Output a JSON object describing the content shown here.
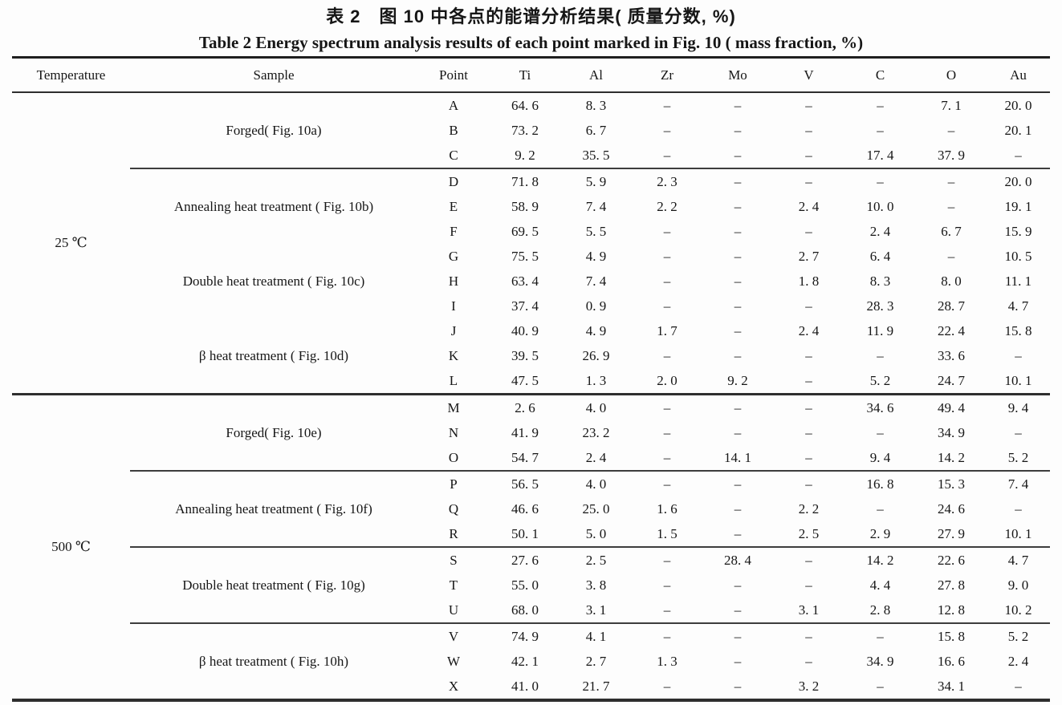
{
  "page": {
    "title_zh": "表 2　图 10 中各点的能谱分析结果( 质量分数, %)",
    "title_en": "Table 2   Energy spectrum analysis results of each point marked in Fig. 10 ( mass fraction, %)"
  },
  "table": {
    "columns": [
      "Temperature",
      "Sample",
      "Point",
      "Ti",
      "Al",
      "Zr",
      "Mo",
      "V",
      "C",
      "O",
      "Au"
    ],
    "temperature_groups": [
      {
        "temperature": "25 ℃",
        "samples": [
          {
            "label": "Forged( Fig. 10a)",
            "divider_above": false,
            "rows": [
              {
                "point": "A",
                "values": [
                  "64. 6",
                  "8. 3",
                  "–",
                  "–",
                  "–",
                  "–",
                  "7. 1",
                  "20. 0"
                ]
              },
              {
                "point": "B",
                "values": [
                  "73. 2",
                  "6. 7",
                  "–",
                  "–",
                  "–",
                  "–",
                  "–",
                  "20. 1"
                ]
              },
              {
                "point": "C",
                "values": [
                  "9. 2",
                  "35. 5",
                  "–",
                  "–",
                  "–",
                  "17. 4",
                  "37. 9",
                  "–"
                ]
              }
            ]
          },
          {
            "label": "Annealing heat treatment ( Fig. 10b)",
            "divider_above": true,
            "rows": [
              {
                "point": "D",
                "values": [
                  "71. 8",
                  "5. 9",
                  "2. 3",
                  "–",
                  "–",
                  "–",
                  "–",
                  "20. 0"
                ]
              },
              {
                "point": "E",
                "values": [
                  "58. 9",
                  "7. 4",
                  "2. 2",
                  "–",
                  "2. 4",
                  "10. 0",
                  "–",
                  "19. 1"
                ]
              },
              {
                "point": "F",
                "values": [
                  "69. 5",
                  "5. 5",
                  "–",
                  "–",
                  "–",
                  "2. 4",
                  "6. 7",
                  "15. 9"
                ]
              }
            ]
          },
          {
            "label": "Double heat treatment ( Fig. 10c)",
            "divider_above": false,
            "rows": [
              {
                "point": "G",
                "values": [
                  "75. 5",
                  "4. 9",
                  "–",
                  "–",
                  "2. 7",
                  "6. 4",
                  "–",
                  "10. 5"
                ]
              },
              {
                "point": "H",
                "values": [
                  "63. 4",
                  "7. 4",
                  "–",
                  "–",
                  "1. 8",
                  "8. 3",
                  "8. 0",
                  "11. 1"
                ]
              },
              {
                "point": "I",
                "values": [
                  "37. 4",
                  "0. 9",
                  "–",
                  "–",
                  "–",
                  "28. 3",
                  "28. 7",
                  "4. 7"
                ]
              }
            ]
          },
          {
            "label": "β heat treatment ( Fig. 10d)",
            "divider_above": false,
            "rows": [
              {
                "point": "J",
                "values": [
                  "40. 9",
                  "4. 9",
                  "1. 7",
                  "–",
                  "2. 4",
                  "11. 9",
                  "22. 4",
                  "15. 8"
                ]
              },
              {
                "point": "K",
                "values": [
                  "39. 5",
                  "26. 9",
                  "–",
                  "–",
                  "–",
                  "–",
                  "33. 6",
                  "–"
                ]
              },
              {
                "point": "L",
                "values": [
                  "47. 5",
                  "1. 3",
                  "2. 0",
                  "9. 2",
                  "–",
                  "5. 2",
                  "24. 7",
                  "10. 1"
                ]
              }
            ]
          }
        ]
      },
      {
        "temperature": "500 ℃",
        "samples": [
          {
            "label": "Forged( Fig. 10e)",
            "divider_above": false,
            "rows": [
              {
                "point": "M",
                "values": [
                  "2. 6",
                  "4. 0",
                  "–",
                  "–",
                  "–",
                  "34. 6",
                  "49. 4",
                  "9. 4"
                ]
              },
              {
                "point": "N",
                "values": [
                  "41. 9",
                  "23. 2",
                  "–",
                  "–",
                  "–",
                  "–",
                  "34. 9",
                  "–"
                ]
              },
              {
                "point": "O",
                "values": [
                  "54. 7",
                  "2. 4",
                  "–",
                  "14. 1",
                  "–",
                  "9. 4",
                  "14. 2",
                  "5. 2"
                ]
              }
            ]
          },
          {
            "label": "Annealing heat treatment ( Fig. 10f)",
            "divider_above": true,
            "rows": [
              {
                "point": "P",
                "values": [
                  "56. 5",
                  "4. 0",
                  "–",
                  "–",
                  "–",
                  "16. 8",
                  "15. 3",
                  "7. 4"
                ]
              },
              {
                "point": "Q",
                "values": [
                  "46. 6",
                  "25. 0",
                  "1. 6",
                  "–",
                  "2. 2",
                  "–",
                  "24. 6",
                  "–"
                ]
              },
              {
                "point": "R",
                "values": [
                  "50. 1",
                  "5. 0",
                  "1. 5",
                  "–",
                  "2. 5",
                  "2. 9",
                  "27. 9",
                  "10. 1"
                ]
              }
            ]
          },
          {
            "label": "Double heat treatment ( Fig. 10g)",
            "divider_above": true,
            "rows": [
              {
                "point": "S",
                "values": [
                  "27. 6",
                  "2. 5",
                  "–",
                  "28. 4",
                  "–",
                  "14. 2",
                  "22. 6",
                  "4. 7"
                ]
              },
              {
                "point": "T",
                "values": [
                  "55. 0",
                  "3. 8",
                  "–",
                  "–",
                  "–",
                  "4. 4",
                  "27. 8",
                  "9. 0"
                ]
              },
              {
                "point": "U",
                "values": [
                  "68. 0",
                  "3. 1",
                  "–",
                  "–",
                  "3. 1",
                  "2. 8",
                  "12. 8",
                  "10. 2"
                ]
              }
            ]
          },
          {
            "label": "β heat treatment ( Fig. 10h)",
            "divider_above": true,
            "rows": [
              {
                "point": "V",
                "values": [
                  "74. 9",
                  "4. 1",
                  "–",
                  "–",
                  "–",
                  "–",
                  "15. 8",
                  "5. 2"
                ]
              },
              {
                "point": "W",
                "values": [
                  "42. 1",
                  "2. 7",
                  "1. 3",
                  "–",
                  "–",
                  "34. 9",
                  "16. 6",
                  "2. 4"
                ]
              },
              {
                "point": "X",
                "values": [
                  "41. 0",
                  "21. 7",
                  "–",
                  "–",
                  "3. 2",
                  "–",
                  "34. 1",
                  "–"
                ]
              }
            ]
          }
        ]
      }
    ]
  }
}
